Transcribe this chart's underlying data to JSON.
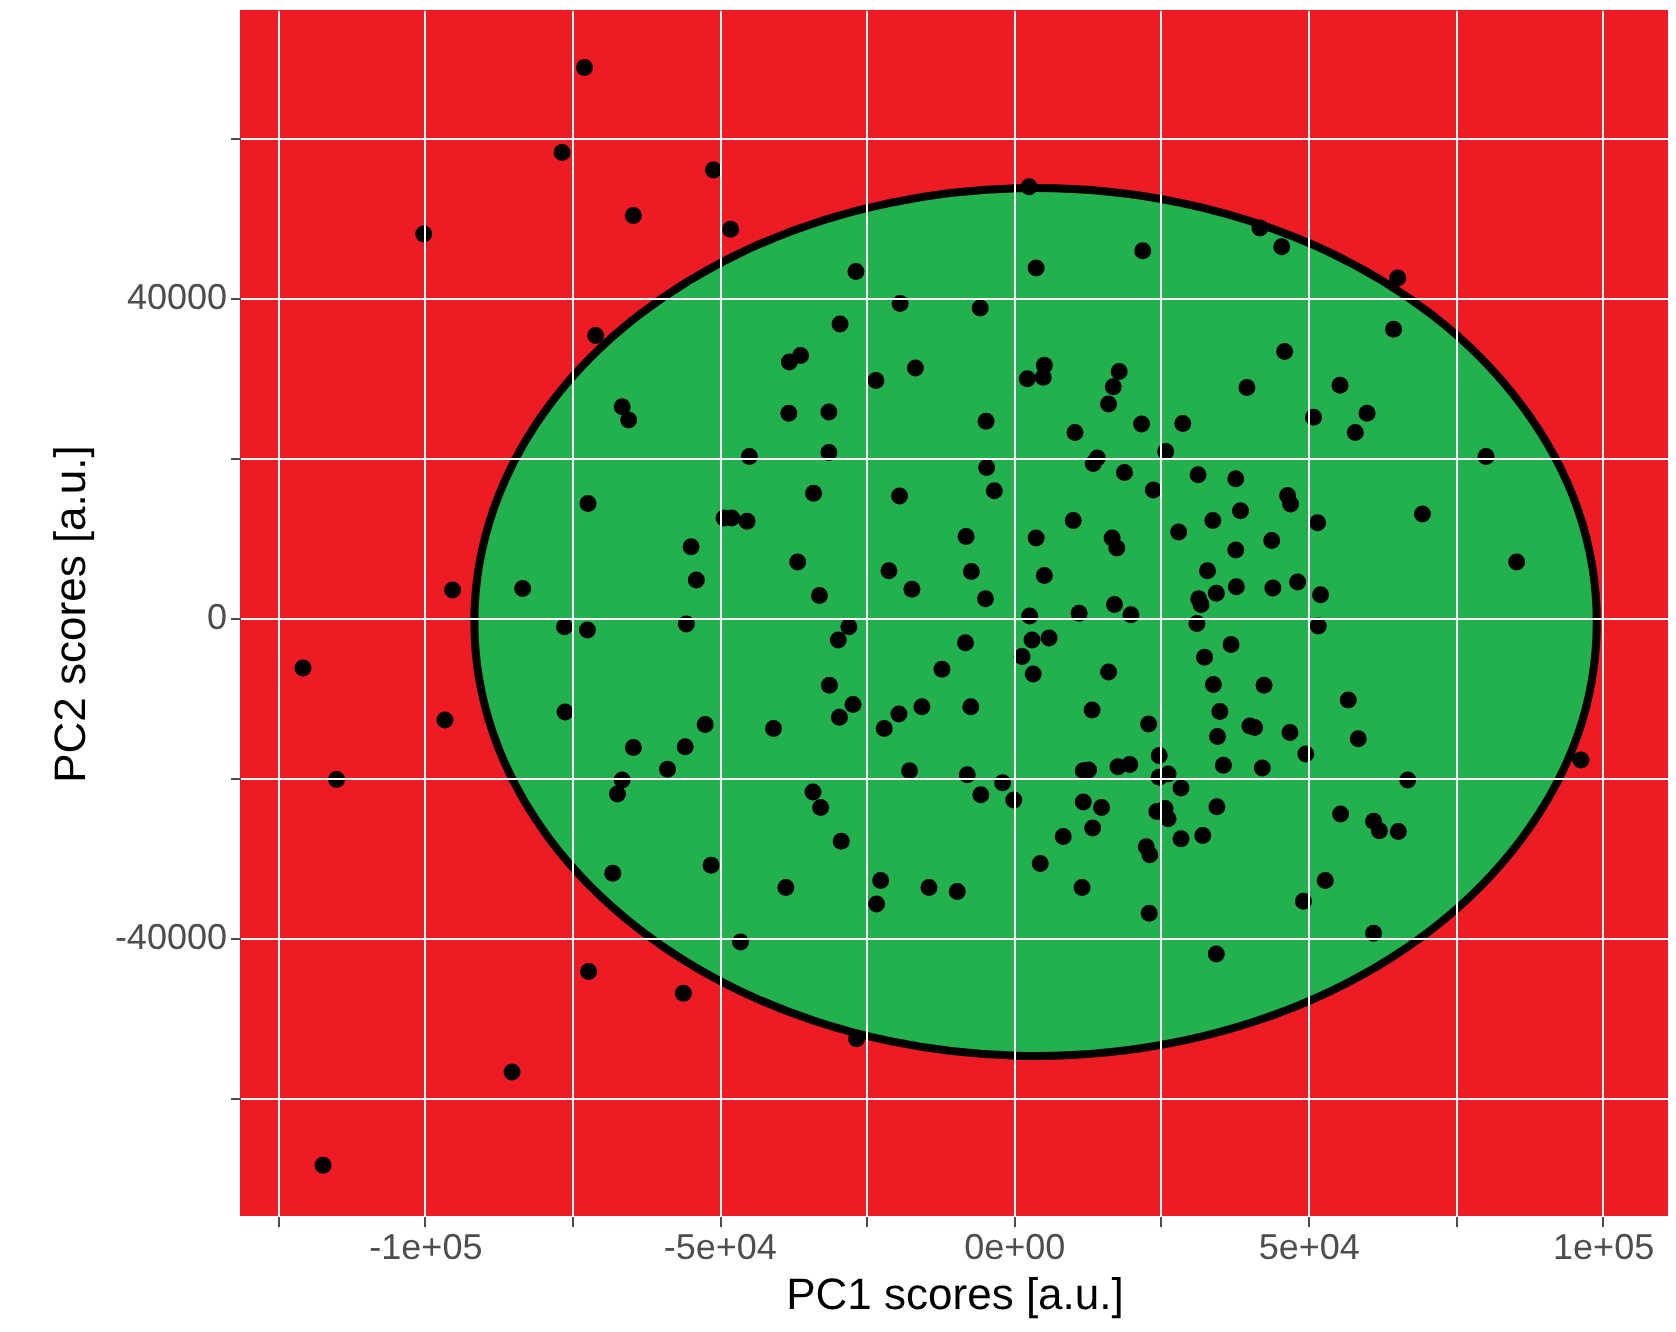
{
  "chart_data": {
    "type": "scatter",
    "xlabel": "PC1 scores [a.u.]",
    "ylabel": "PC2 scores [a.u.]",
    "xlim": [
      -131400,
      111100
    ],
    "ylim": [
      -74750,
      76000
    ],
    "xticks": [
      {
        "value": -125000,
        "label": null
      },
      {
        "value": -100000,
        "label": "-1e+05"
      },
      {
        "value": -75000,
        "label": null
      },
      {
        "value": -50000,
        "label": "-5e+04"
      },
      {
        "value": -25000,
        "label": null
      },
      {
        "value": 0,
        "label": "0e+00"
      },
      {
        "value": 25000,
        "label": null
      },
      {
        "value": 50000,
        "label": "5e+04"
      },
      {
        "value": 75000,
        "label": null
      },
      {
        "value": 100000,
        "label": "1e+05"
      }
    ],
    "yticks": [
      {
        "value": -60000,
        "label": null
      },
      -40000,
      {
        "value": -20000,
        "label": null
      },
      0,
      {
        "value": 20000,
        "label": null
      },
      40000,
      {
        "value": 60000,
        "label": null
      }
    ],
    "grid": true,
    "series": [
      {
        "type": "area",
        "color": "#22b14c",
        "x": [
          99000,
          95800,
          86200,
          71100,
          51350,
          28380,
          3700,
          -20980,
          -43950,
          -63680,
          -78830,
          -88360,
          -91600,
          -88360,
          -78830,
          -63680,
          -43950,
          -20980,
          3700,
          28380,
          51350,
          71100,
          86200,
          95800
        ],
        "values": [
          -500,
          13550,
          26630,
          37850,
          46480,
          51900,
          53750,
          51900,
          46480,
          37850,
          26630,
          13550,
          -500,
          -14550,
          -27630,
          -38850,
          -47480,
          -52900,
          -54750,
          -52900,
          -47480,
          -38850,
          -27630,
          -14550
        ]
      },
      {
        "type": "scatter",
        "color": "#000000",
        "marker": "circle",
        "x": [
          -72900,
          -76700,
          -51000,
          -64600,
          -100200,
          -48100,
          -26800,
          -19300,
          -29500,
          -38100,
          -36200,
          -23400,
          -16700,
          -71000,
          -66500,
          -65400,
          -38200,
          -31400,
          2600,
          3800,
          21900,
          41800,
          45500,
          65200,
          64500,
          -5700,
          46000,
          39600,
          55400,
          60000,
          2300,
          5000,
          5200,
          17900,
          16900,
          16100,
          -4700,
          50900,
          21700,
          28700,
          -31400,
          -44900,
          -72300,
          -34000,
          -19400,
          -49200,
          -47900,
          -45300,
          -54800,
          -53900,
          -36700,
          -33000,
          -21200,
          -17300,
          -95300,
          -83400,
          -76300,
          -72400,
          -55600,
          -28000,
          -29800,
          -120700,
          -31300,
          -12200,
          -27300,
          -29600,
          -19500,
          -15600,
          -22000,
          -76200,
          -52400,
          -40800,
          -96600,
          -64600,
          -55800,
          -58800,
          -66500,
          -67300,
          -115000,
          -34100,
          -32800,
          -17700,
          10400,
          58000,
          -4600,
          -3300,
          13500,
          14200,
          18800,
          25800,
          23700,
          31300,
          37700,
          46500,
          47000,
          38500,
          33800,
          51600,
          80200,
          69400,
          85400,
          -8100,
          3800,
          10100,
          16700,
          17500,
          28000,
          37700,
          43800,
          -7200,
          5200,
          32900,
          -4800,
          31400,
          31800,
          34400,
          37800,
          44000,
          48200,
          52100,
          2700,
          11100,
          17100,
          19900,
          31100,
          51700,
          -8200,
          3100,
          6000,
          1400,
          3300,
          16100,
          32400,
          36900,
          33900,
          42500,
          -7300,
          13300,
          35000,
          56800,
          22900,
          40100,
          40900,
          34600,
          46900,
          58500,
          49600,
          24700,
          11800,
          12700,
          17700,
          19700,
          24700,
          26200,
          28400,
          35600,
          42200,
          -7900,
          -1900,
          -5600,
          0,
          11800,
          14900,
          24300,
          25700,
          34500,
          55500,
          61100,
          66900,
          96300,
          26200,
          62100,
          65300,
          8400,
          13400,
          22500,
          23100,
          28400,
          32100,
          4500,
          11600,
          -9600,
          23000,
          34400,
          49200,
          52900,
          61100,
          -29300,
          -68100,
          -51400,
          -38700,
          -22600,
          -23300,
          -14400,
          -46400,
          -72200,
          -56100,
          -26700,
          -85200,
          -117300
        ],
        "values": [
          68800,
          58200,
          56000,
          50300,
          48000,
          48600,
          43300,
          39300,
          36750,
          32000,
          32800,
          29700,
          31250,
          35300,
          26400,
          24750,
          25600,
          25750,
          53900,
          43750,
          45900,
          48750,
          46400,
          42500,
          36100,
          38750,
          33300,
          28800,
          29100,
          25600,
          29900,
          30100,
          31600,
          30800,
          28900,
          26750,
          24600,
          25100,
          24250,
          24300,
          20700,
          20200,
          14300,
          15600,
          15250,
          12500,
          12500,
          12100,
          8900,
          4750,
          7000,
          2800,
          5900,
          3600,
          3500,
          3700,
          -1100,
          -1500,
          -750,
          -1100,
          -2750,
          -6250,
          -8400,
          -6400,
          -10800,
          -12400,
          -12000,
          -11100,
          -13800,
          -11750,
          -13300,
          -13800,
          -12750,
          -16200,
          -16100,
          -18900,
          -20250,
          -22000,
          -20200,
          -21750,
          -23700,
          -19100,
          23200,
          23200,
          18800,
          15900,
          19300,
          20000,
          18200,
          20800,
          16000,
          17900,
          17400,
          15300,
          14250,
          13400,
          12200,
          11900,
          20200,
          13000,
          7000,
          10200,
          10000,
          12200,
          10000,
          8750,
          10750,
          8500,
          9700,
          5800,
          5300,
          5900,
          2400,
          2400,
          1700,
          3100,
          3900,
          3750,
          4500,
          2900,
          250,
          600,
          1700,
          400,
          -700,
          -1000,
          -3100,
          -2750,
          -2500,
          -4800,
          -7000,
          -6750,
          -4900,
          -3300,
          -8300,
          -8400,
          -11100,
          -11500,
          -11700,
          -10250,
          -13250,
          -13500,
          -13700,
          -14800,
          -14300,
          -15100,
          -17000,
          -17200,
          -19100,
          -19000,
          -18600,
          -18300,
          -19900,
          -19500,
          -21250,
          -18400,
          -18750,
          -19600,
          -20600,
          -22100,
          -22750,
          -23000,
          -23700,
          -24200,
          -23800,
          -23600,
          -24500,
          -25400,
          -20250,
          -17750,
          -25100,
          -26600,
          -26700,
          -27300,
          -26250,
          -28600,
          -29600,
          -27600,
          -27200,
          -30700,
          -33700,
          -34200,
          -36900,
          -42000,
          -35400,
          -32800,
          -39400,
          -27900,
          -31900,
          -30900,
          -33700,
          -32800,
          -35750,
          -33700,
          -40500,
          -44200,
          -46900,
          -52600,
          -56750,
          -68400
        ]
      }
    ]
  }
}
